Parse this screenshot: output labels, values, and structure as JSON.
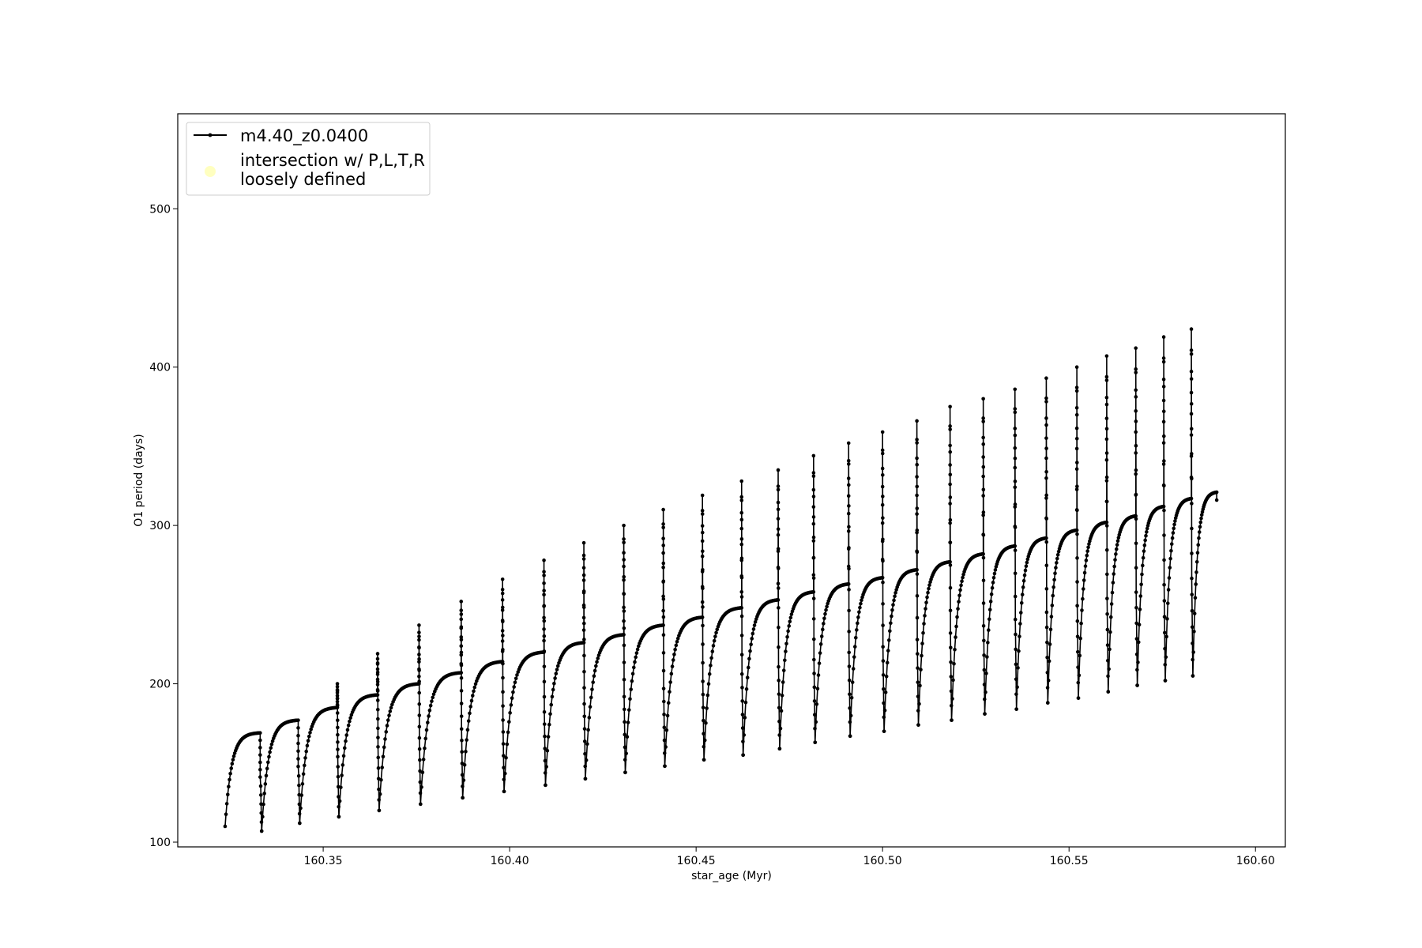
{
  "chart_data": {
    "type": "line",
    "title": "",
    "xlabel": "star_age (Myr)",
    "ylabel": "O1 period (days)",
    "xlim": [
      160.311,
      160.608
    ],
    "ylim": [
      97,
      560
    ],
    "x_ticks": [
      160.35,
      160.4,
      160.45,
      160.5,
      160.55,
      160.6
    ],
    "x_tick_labels": [
      "160.35",
      "160.40",
      "160.45",
      "160.50",
      "160.55",
      "160.60"
    ],
    "y_ticks": [
      100,
      200,
      300,
      400,
      500
    ],
    "y_tick_labels": [
      "100",
      "200",
      "300",
      "400",
      "500"
    ],
    "grid": false,
    "legend": {
      "placement": "top-left",
      "entries": [
        {
          "label": "m4.40_z0.0400",
          "marker": "line-with-dots",
          "color": "#000000"
        },
        {
          "label_lines": [
            "intersection w/ P,L,T,R",
            "loosely defined"
          ],
          "marker": "circle",
          "color": "#ffffc0"
        }
      ]
    },
    "series": [
      {
        "name": "m4.40_z0.0400",
        "color": "#000000",
        "marker": "dot",
        "start": {
          "x": 160.3237,
          "y": 110
        },
        "end": {
          "x": 160.5896,
          "y": 316
        },
        "pulses": [
          {
            "x": 160.3331,
            "pre": 169,
            "spike": null,
            "min": 107
          },
          {
            "x": 160.3433,
            "pre": 177,
            "spike": null,
            "min": 112
          },
          {
            "x": 160.3538,
            "pre": 185,
            "spike": 200,
            "min": 116
          },
          {
            "x": 160.3646,
            "pre": 193,
            "spike": 219,
            "min": 120
          },
          {
            "x": 160.3757,
            "pre": 200,
            "spike": 237,
            "min": 124
          },
          {
            "x": 160.387,
            "pre": 207,
            "spike": 252,
            "min": 128
          },
          {
            "x": 160.3981,
            "pre": 214,
            "spike": 266,
            "min": 132
          },
          {
            "x": 160.4092,
            "pre": 220,
            "spike": 278,
            "min": 136
          },
          {
            "x": 160.4199,
            "pre": 226,
            "spike": 289,
            "min": 140
          },
          {
            "x": 160.4306,
            "pre": 231,
            "spike": 300,
            "min": 144
          },
          {
            "x": 160.4412,
            "pre": 237,
            "spike": 310,
            "min": 148
          },
          {
            "x": 160.4517,
            "pre": 242,
            "spike": 319,
            "min": 152
          },
          {
            "x": 160.4622,
            "pre": 248,
            "spike": 328,
            "min": 155
          },
          {
            "x": 160.472,
            "pre": 253,
            "spike": 335,
            "min": 159
          },
          {
            "x": 160.4815,
            "pre": 258,
            "spike": 344,
            "min": 163
          },
          {
            "x": 160.4909,
            "pre": 263,
            "spike": 352,
            "min": 167
          },
          {
            "x": 160.5,
            "pre": 267,
            "spike": 359,
            "min": 170
          },
          {
            "x": 160.5092,
            "pre": 272,
            "spike": 366,
            "min": 174
          },
          {
            "x": 160.5181,
            "pre": 277,
            "spike": 375,
            "min": 177
          },
          {
            "x": 160.527,
            "pre": 282,
            "spike": 380,
            "min": 181
          },
          {
            "x": 160.5355,
            "pre": 287,
            "spike": 386,
            "min": 184
          },
          {
            "x": 160.5439,
            "pre": 292,
            "spike": 393,
            "min": 188
          },
          {
            "x": 160.5521,
            "pre": 297,
            "spike": 400,
            "min": 191
          },
          {
            "x": 160.5601,
            "pre": 302,
            "spike": 407,
            "min": 195
          },
          {
            "x": 160.5679,
            "pre": 306,
            "spike": 412,
            "min": 199
          },
          {
            "x": 160.5754,
            "pre": 312,
            "spike": 419,
            "min": 202
          },
          {
            "x": 160.5828,
            "pre": 317,
            "spike": 424,
            "min": 205
          }
        ]
      }
    ],
    "annotations": []
  }
}
